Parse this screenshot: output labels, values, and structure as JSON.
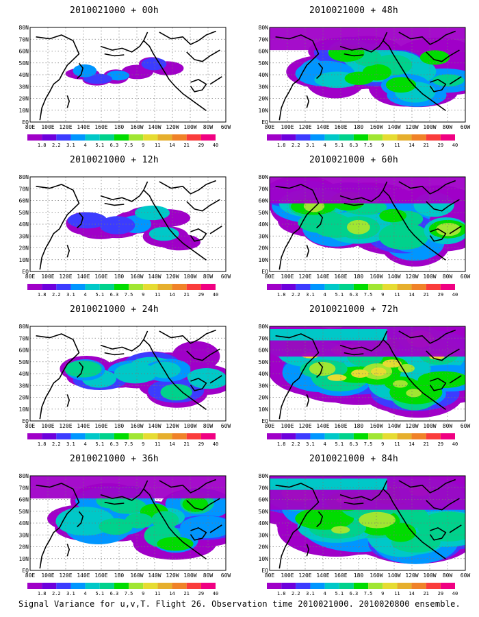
{
  "panels": [
    {
      "title": "2010021000 + 00h"
    },
    {
      "title": "2010021000 + 48h"
    },
    {
      "title": "2010021000 + 12h"
    },
    {
      "title": "2010021000 + 60h"
    },
    {
      "title": "2010021000 + 24h"
    },
    {
      "title": "2010021000 + 72h"
    },
    {
      "title": "2010021000 + 36h"
    },
    {
      "title": "2010021000 + 84h"
    }
  ],
  "lat_labels": [
    "80N",
    "70N",
    "60N",
    "50N",
    "40N",
    "30N",
    "20N",
    "10N",
    "EQ"
  ],
  "lon_labels": [
    "80E",
    "100E",
    "120E",
    "140E",
    "160E",
    "180",
    "160W",
    "140W",
    "120W",
    "100W",
    "80W",
    "60W"
  ],
  "colorbar": {
    "labels": [
      "1.8",
      "2.2",
      "3.1",
      "4",
      "5.1",
      "6.3",
      "7.5",
      "9",
      "11",
      "14",
      "21",
      "29",
      "40"
    ],
    "colors": [
      "#a000c8",
      "#6e00dc",
      "#3c3cff",
      "#0096ff",
      "#00c8c8",
      "#00d28c",
      "#00dc00",
      "#a0e632",
      "#e6dc32",
      "#e6af2d",
      "#f08228",
      "#fa3c3c",
      "#f00082"
    ]
  },
  "footer": "Signal Variance for u,v,T. Flight 26. Observation time 2010021000. 2010020800 ensemble."
}
